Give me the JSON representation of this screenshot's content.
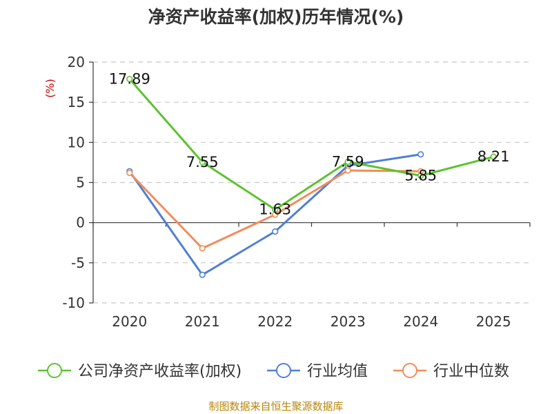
{
  "chart_data": {
    "type": "line",
    "title": "净资产收益率(加权)历年情况(%)",
    "ylabel": "(%)",
    "categories": [
      "2020",
      "2021",
      "2022",
      "2023",
      "2024",
      "2025"
    ],
    "ylim": [
      -10,
      20
    ],
    "yticks": [
      "20",
      "15",
      "10",
      "5",
      "0",
      "-5",
      "-10"
    ],
    "ytick_values": [
      20,
      15,
      10,
      5,
      0,
      -5,
      -10
    ],
    "grid": true,
    "legend_position": "bottom",
    "series": [
      {
        "name": "公司净资产收益率(加权)",
        "color": "#5cc22e",
        "values": [
          17.89,
          7.55,
          1.63,
          7.59,
          5.85,
          8.21
        ],
        "labels": [
          "17.89",
          "7.55",
          "1.63",
          "7.59",
          "5.85",
          "8.21"
        ]
      },
      {
        "name": "行业均值",
        "color": "#4f7fd6",
        "values": [
          6.4,
          -6.5,
          -1.1,
          7.1,
          8.5,
          null
        ]
      },
      {
        "name": "行业中位数",
        "color": "#f28c5a",
        "values": [
          6.2,
          -3.2,
          1.0,
          6.5,
          6.4,
          null
        ]
      }
    ]
  },
  "source": "制图数据来自恒生聚源数据库"
}
